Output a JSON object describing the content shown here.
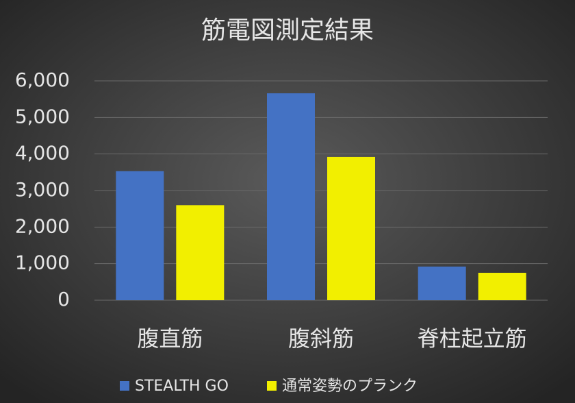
{
  "chart_data": {
    "type": "bar",
    "title": "筋電図測定結果",
    "categories": [
      "腹直筋",
      "腹斜筋",
      "脊柱起立筋"
    ],
    "series": [
      {
        "name": "STEALTH GO",
        "color": "#4472c4",
        "values": [
          3530,
          5660,
          920
        ]
      },
      {
        "name": "通常姿勢のプランク",
        "color": "#f2ef00",
        "values": [
          2600,
          3920,
          750
        ]
      }
    ],
    "ylim": [
      0,
      6000
    ],
    "yticks": [
      0,
      {
        "value": 1000,
        "label": "1,000"
      },
      {
        "value": 2000,
        "label": "2,000"
      },
      {
        "value": 3000,
        "label": "3,000"
      },
      {
        "value": 4000,
        "label": "4,000"
      },
      {
        "value": 5000,
        "label": "5,000"
      },
      {
        "value": 6000,
        "label": "6,000"
      }
    ],
    "grid": true,
    "legend": "bottom"
  }
}
